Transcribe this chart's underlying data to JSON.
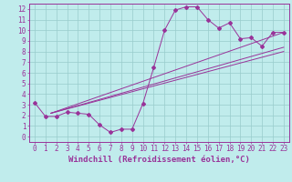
{
  "xlabel": "Windchill (Refroidissement éolien,°C)",
  "bg_color": "#c0ecec",
  "line_color": "#993399",
  "xlim": [
    -0.5,
    23.5
  ],
  "ylim": [
    -0.5,
    12.5
  ],
  "xticks": [
    0,
    1,
    2,
    3,
    4,
    5,
    6,
    7,
    8,
    9,
    10,
    11,
    12,
    13,
    14,
    15,
    16,
    17,
    18,
    19,
    20,
    21,
    22,
    23
  ],
  "yticks": [
    0,
    1,
    2,
    3,
    4,
    5,
    6,
    7,
    8,
    9,
    10,
    11,
    12
  ],
  "line1_x": [
    0,
    1,
    2,
    3,
    4,
    5,
    6,
    7,
    8,
    9,
    10,
    11,
    12,
    13,
    14,
    15,
    16,
    17,
    18,
    19,
    20,
    21,
    22,
    23
  ],
  "line1_y": [
    3.2,
    1.9,
    1.9,
    2.3,
    2.2,
    2.1,
    1.1,
    0.4,
    0.7,
    0.7,
    3.1,
    6.5,
    10.0,
    11.9,
    12.2,
    12.2,
    11.0,
    10.2,
    10.7,
    9.2,
    9.3,
    8.5,
    9.8,
    9.8
  ],
  "line2_x": [
    1.5,
    23
  ],
  "line2_y": [
    2.2,
    9.8
  ],
  "line3_x": [
    1.5,
    23
  ],
  "line3_y": [
    2.2,
    8.4
  ],
  "line4_x": [
    1.5,
    23
  ],
  "line4_y": [
    2.2,
    8.0
  ],
  "grid_color": "#99cccc",
  "tick_fontsize": 5.5,
  "xlabel_fontsize": 6.5
}
